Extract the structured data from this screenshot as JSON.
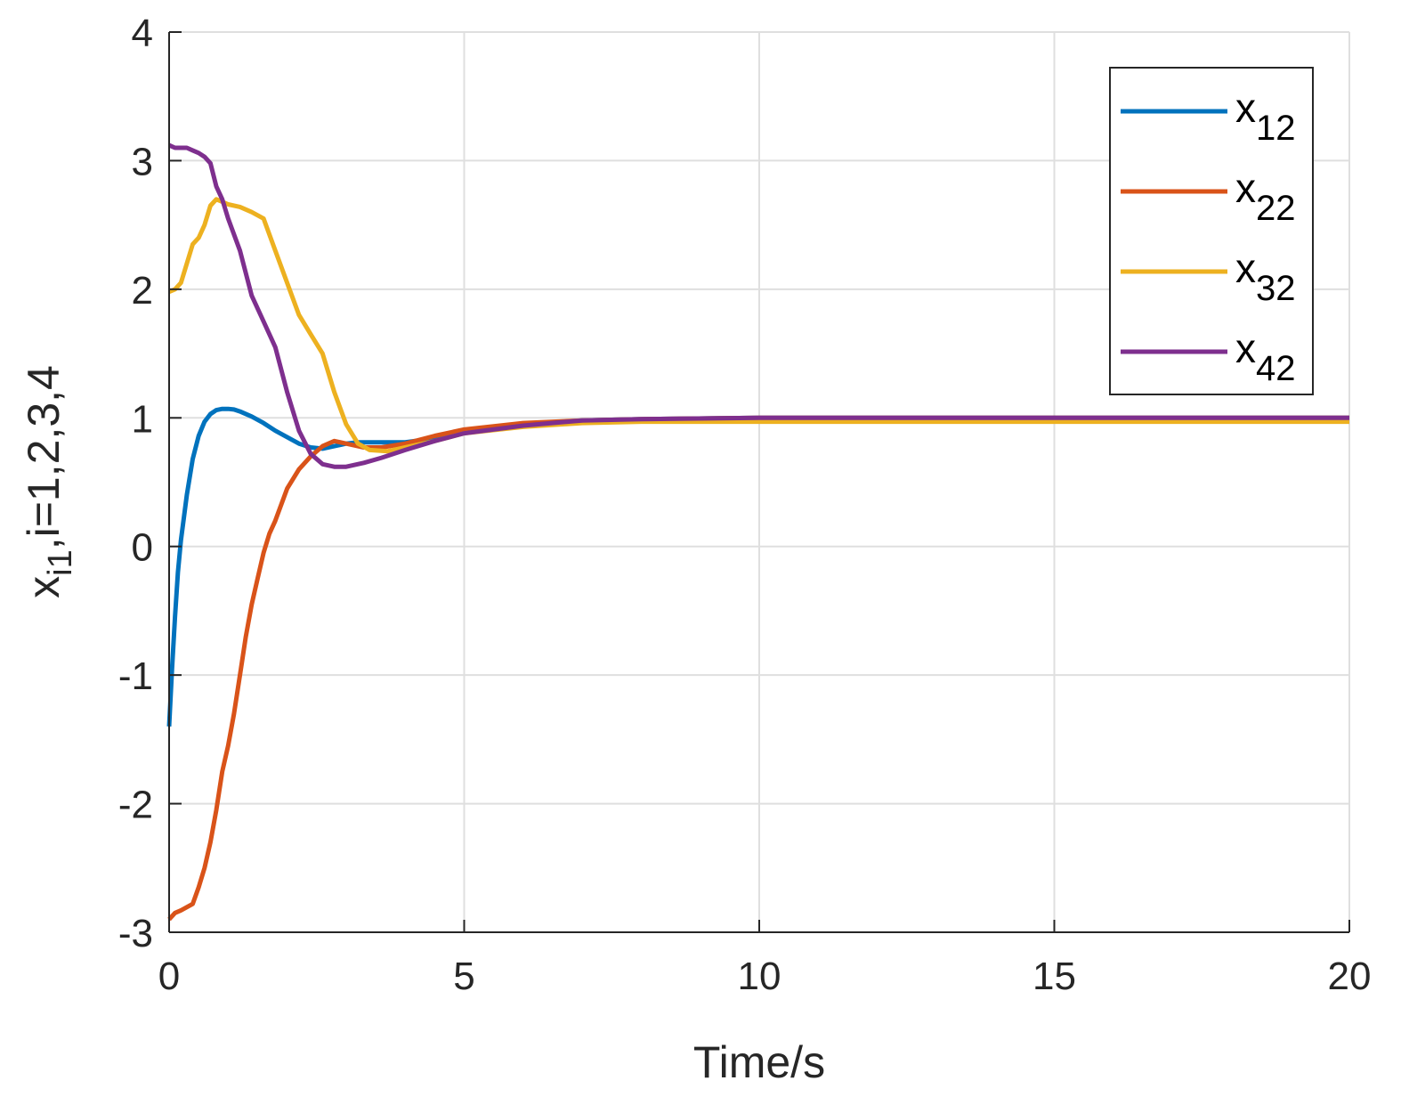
{
  "chart_data": {
    "type": "line",
    "title": "",
    "xlabel": "Time/s",
    "ylabel": {
      "base": "x",
      "sub": "i1",
      "rest": ",i=1,2,3,4"
    },
    "xlim": [
      0,
      20
    ],
    "ylim": [
      -3,
      4
    ],
    "xticks": [
      0,
      5,
      10,
      15,
      20
    ],
    "yticks": [
      -3,
      -2,
      -1,
      0,
      1,
      2,
      3,
      4
    ],
    "xtick_labels": [
      "0",
      "5",
      "10",
      "15",
      "20"
    ],
    "ytick_labels": [
      "-3",
      "-2",
      "-1",
      "0",
      "1",
      "2",
      "3",
      "4"
    ],
    "grid": true,
    "legend_position": "top-right",
    "series": [
      {
        "name": "x12",
        "label_base": "x",
        "label_sub": "12",
        "color": "#0072BD",
        "x": [
          0,
          0.05,
          0.1,
          0.15,
          0.2,
          0.3,
          0.4,
          0.5,
          0.6,
          0.7,
          0.8,
          0.9,
          1.0,
          1.1,
          1.2,
          1.4,
          1.6,
          1.8,
          2.0,
          2.2,
          2.4,
          2.6,
          2.8,
          3.0,
          3.2,
          3.5,
          4.0,
          4.5,
          5.0,
          6.0,
          7.0,
          8.0,
          10.0,
          15.0,
          20.0
        ],
        "y": [
          -1.4,
          -0.95,
          -0.55,
          -0.2,
          0.05,
          0.4,
          0.68,
          0.86,
          0.97,
          1.03,
          1.06,
          1.07,
          1.07,
          1.065,
          1.05,
          1.01,
          0.96,
          0.9,
          0.85,
          0.8,
          0.77,
          0.76,
          0.78,
          0.8,
          0.81,
          0.81,
          0.81,
          0.84,
          0.9,
          0.95,
          0.98,
          0.99,
          1.0,
          1.0,
          1.0
        ]
      },
      {
        "name": "x22",
        "label_base": "x",
        "label_sub": "22",
        "color": "#D95319",
        "x": [
          0,
          0.1,
          0.2,
          0.4,
          0.5,
          0.6,
          0.7,
          0.8,
          0.9,
          1.0,
          1.1,
          1.2,
          1.3,
          1.4,
          1.5,
          1.6,
          1.7,
          1.8,
          2.0,
          2.2,
          2.4,
          2.6,
          2.8,
          3.0,
          3.3,
          3.6,
          4.0,
          4.5,
          5.0,
          6.0,
          7.0,
          8.0,
          10.0,
          15.0,
          20.0
        ],
        "y": [
          -2.9,
          -2.85,
          -2.83,
          -2.78,
          -2.65,
          -2.5,
          -2.3,
          -2.05,
          -1.75,
          -1.55,
          -1.3,
          -1.0,
          -0.7,
          -0.45,
          -0.25,
          -0.05,
          0.1,
          0.2,
          0.45,
          0.6,
          0.7,
          0.78,
          0.82,
          0.8,
          0.77,
          0.77,
          0.8,
          0.86,
          0.91,
          0.96,
          0.98,
          0.99,
          1.0,
          1.0,
          1.0
        ]
      },
      {
        "name": "x32",
        "label_base": "x",
        "label_sub": "32",
        "color": "#EDB120",
        "x": [
          0,
          0.1,
          0.2,
          0.3,
          0.4,
          0.5,
          0.6,
          0.7,
          0.8,
          0.9,
          1.0,
          1.2,
          1.4,
          1.6,
          1.8,
          2.0,
          2.2,
          2.4,
          2.6,
          2.8,
          3.0,
          3.2,
          3.4,
          3.7,
          4.0,
          4.5,
          5.0,
          6.0,
          7.0,
          8.0,
          10.0,
          15.0,
          20.0
        ],
        "y": [
          1.98,
          2.0,
          2.05,
          2.2,
          2.35,
          2.4,
          2.5,
          2.65,
          2.7,
          2.68,
          2.66,
          2.64,
          2.6,
          2.55,
          2.3,
          2.05,
          1.8,
          1.65,
          1.5,
          1.2,
          0.95,
          0.8,
          0.75,
          0.74,
          0.77,
          0.82,
          0.88,
          0.93,
          0.96,
          0.97,
          0.97,
          0.97,
          0.97
        ]
      },
      {
        "name": "x42",
        "label_base": "x",
        "label_sub": "42",
        "color": "#7E2F8E",
        "x": [
          0,
          0.1,
          0.2,
          0.3,
          0.4,
          0.5,
          0.6,
          0.7,
          0.8,
          0.9,
          1.0,
          1.2,
          1.4,
          1.6,
          1.8,
          2.0,
          2.2,
          2.4,
          2.6,
          2.8,
          3.0,
          3.3,
          3.6,
          4.0,
          4.5,
          5.0,
          6.0,
          7.0,
          8.0,
          10.0,
          15.0,
          20.0
        ],
        "y": [
          3.12,
          3.1,
          3.1,
          3.1,
          3.08,
          3.06,
          3.03,
          2.98,
          2.8,
          2.7,
          2.55,
          2.3,
          1.95,
          1.75,
          1.55,
          1.2,
          0.9,
          0.72,
          0.64,
          0.62,
          0.62,
          0.65,
          0.69,
          0.75,
          0.82,
          0.88,
          0.94,
          0.98,
          0.99,
          1.0,
          1.0,
          1.0
        ]
      }
    ]
  }
}
